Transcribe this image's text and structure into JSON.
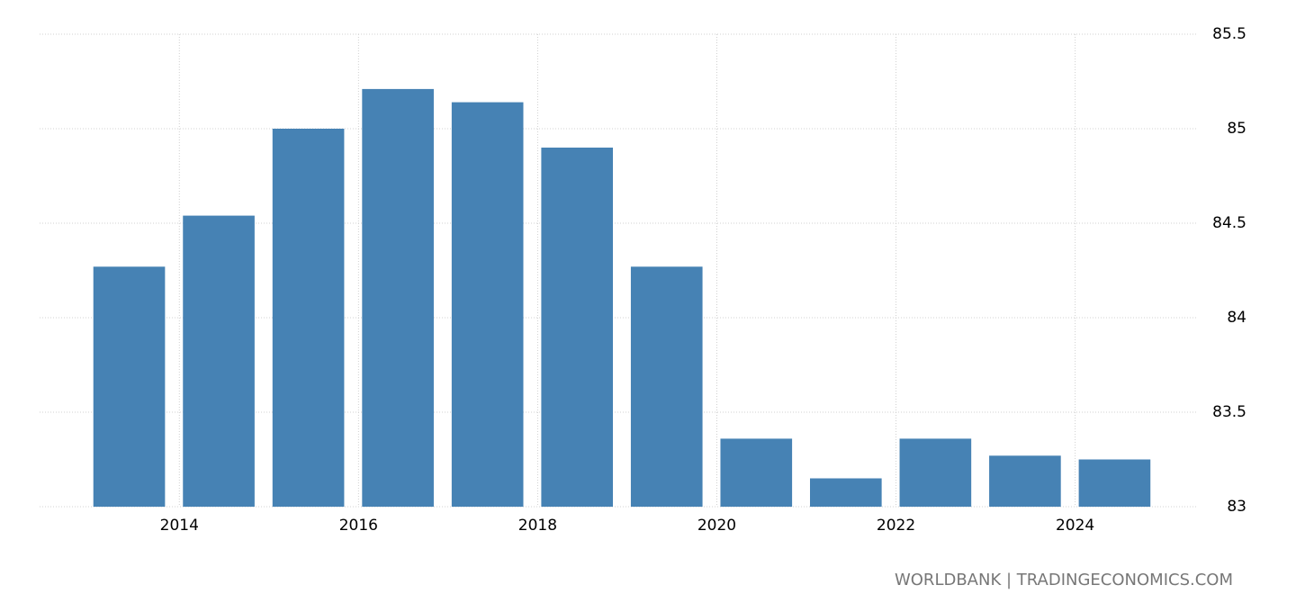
{
  "chart_data": {
    "type": "bar",
    "x": [
      2013,
      2014,
      2015,
      2016,
      2017,
      2018,
      2019,
      2020,
      2021,
      2022,
      2023,
      2024
    ],
    "values": [
      84.27,
      84.54,
      85.0,
      85.21,
      85.14,
      84.9,
      84.27,
      83.36,
      83.15,
      83.36,
      83.27,
      83.25
    ],
    "color": "#4682b4",
    "xlim": [
      2012.44,
      2025.36
    ],
    "xticks": [
      2014,
      2016,
      2018,
      2020,
      2022,
      2024
    ],
    "ylim": [
      83,
      85.5
    ],
    "yticks": [
      83,
      83.5,
      84,
      84.5,
      85,
      85.5
    ],
    "grid": true,
    "source": "WORLDBANK | TRADINGECONOMICS.COM"
  }
}
